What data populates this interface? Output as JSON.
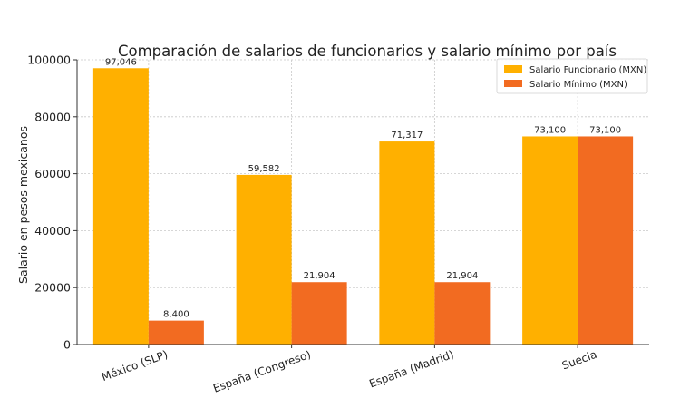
{
  "chart_data": {
    "type": "bar",
    "title": "Comparación de salarios de funcionarios y salario mínimo por país",
    "xlabel": "",
    "ylabel": "Salario en pesos mexicanos",
    "categories": [
      "México (SLP)",
      "España (Congreso)",
      "España (Madrid)",
      "Suecia"
    ],
    "series": [
      {
        "name": "Salario Funcionario (MXN)",
        "color": "#FFB000",
        "values": [
          97046,
          59582,
          71317,
          73100
        ],
        "labels": [
          "97,046",
          "59,582",
          "71,317",
          "73,100"
        ]
      },
      {
        "name": "Salario Mínimo (MXN)",
        "color": "#F26B21",
        "values": [
          8400,
          21904,
          21904,
          73100
        ],
        "labels": [
          "8,400",
          "21,904",
          "21,904",
          "73,100"
        ]
      }
    ],
    "ylim": [
      0,
      100000
    ],
    "yticks": [
      0,
      20000,
      40000,
      60000,
      80000,
      100000
    ],
    "ytick_labels": [
      "0",
      "20000",
      "40000",
      "60000",
      "80000",
      "100000"
    ],
    "grid": true,
    "legend_position": "top-right"
  }
}
